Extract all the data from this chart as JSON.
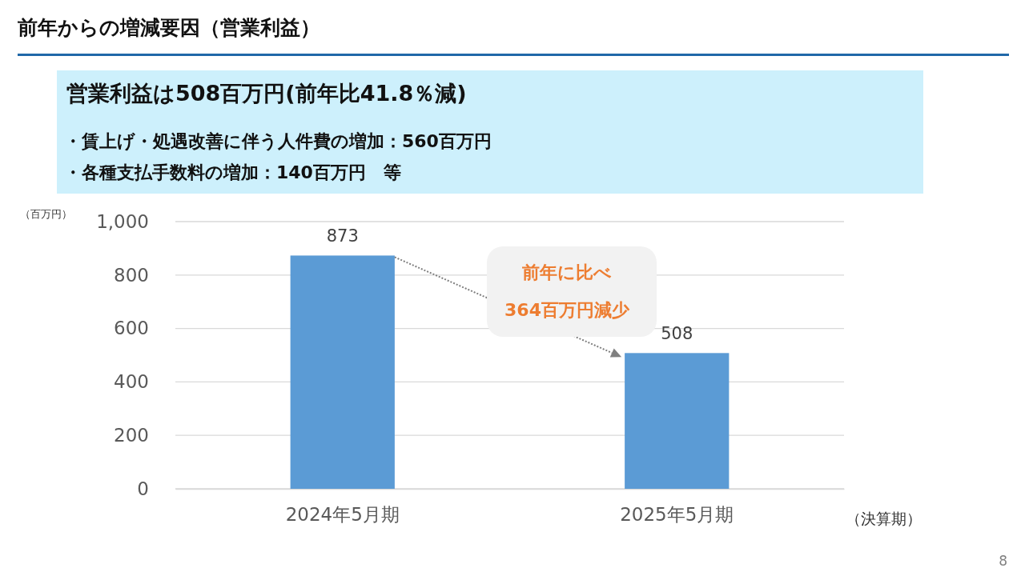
{
  "chart_data": {
    "type": "bar",
    "title": "前年からの増減要因（営業利益）",
    "subtitle": "営業利益は508百万円(前年比41.8％減)",
    "ylabel": "（百万円）",
    "xlabel": "（決算期）",
    "categories": [
      "2024年5月期",
      "2025年5月期"
    ],
    "values": [
      873,
      508
    ],
    "color": "#5b9bd5",
    "ylim": [
      0,
      1000
    ],
    "yticks": [
      0,
      200,
      400,
      600,
      800,
      {
        "value": 1000,
        "label": "1,000"
      }
    ],
    "grid": "y",
    "data_labels": true,
    "annotations": [
      "・賃上げ・処遇改善に伴う人件費の増加：560百万円",
      "・各種支払手数料の増加：140百万円　等",
      "前年に比べ\n364百万円減少",
      "8"
    ]
  }
}
